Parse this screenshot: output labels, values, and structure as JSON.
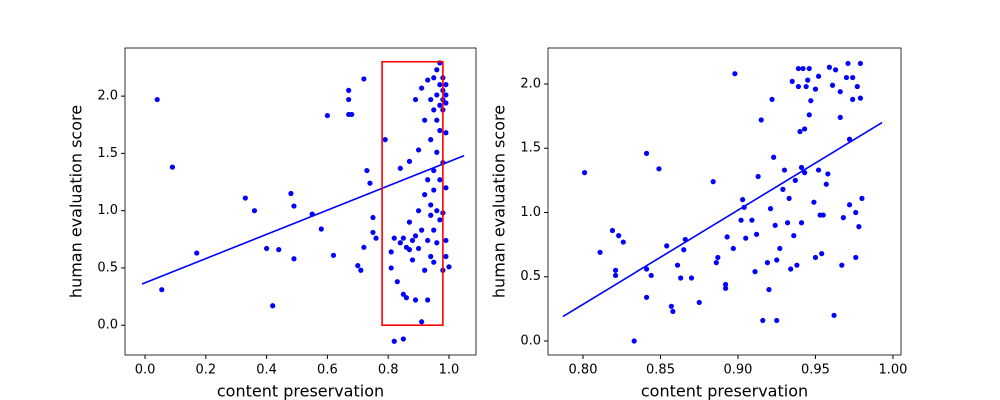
{
  "chart_data": [
    {
      "type": "scatter",
      "xlabel": "content preservation",
      "ylabel": "human evaluation score",
      "color": "#0000ff",
      "xlim": [
        -0.066,
        1.089
      ],
      "ylim": [
        -0.26,
        2.42
      ],
      "xticks": [
        {
          "value": 0.0,
          "label": "0.0"
        },
        0.2,
        0.4,
        0.6,
        0.8,
        {
          "value": 1.0,
          "label": "1.0"
        }
      ],
      "yticks": [
        {
          "value": 0.0,
          "label": "0.0"
        },
        0.5,
        {
          "value": 1.0,
          "label": "1.0"
        },
        1.5,
        {
          "value": 2.0,
          "label": "2.0"
        }
      ],
      "x": [
        0.04,
        0.055,
        0.09,
        0.17,
        0.33,
        0.36,
        0.4,
        0.42,
        0.44,
        0.48,
        0.49,
        0.49,
        0.55,
        0.58,
        0.6,
        0.62,
        0.67,
        0.67,
        0.67,
        0.68,
        0.7,
        0.71,
        0.72,
        0.72,
        0.73,
        0.74,
        0.75,
        0.75,
        0.76,
        0.79,
        0.81,
        0.81,
        0.82,
        0.82,
        0.83,
        0.84,
        0.84,
        0.85,
        0.85,
        0.85,
        0.86,
        0.86,
        0.87,
        0.87,
        0.87,
        0.88,
        0.88,
        0.89,
        0.89,
        0.89,
        0.9,
        0.9,
        0.9,
        0.91,
        0.91,
        0.91,
        0.92,
        0.92,
        0.92,
        0.93,
        0.93,
        0.93,
        0.93,
        0.94,
        0.94,
        0.94,
        0.94,
        0.94,
        0.95,
        0.95,
        0.95,
        0.95,
        0.95,
        0.95,
        0.96,
        0.96,
        0.96,
        0.96,
        0.96,
        0.96,
        0.97,
        0.97,
        0.97,
        0.97,
        0.97,
        0.97,
        0.98,
        0.98,
        0.98,
        0.98,
        0.98,
        0.98,
        0.98,
        0.99,
        0.99,
        0.99,
        0.99,
        0.99,
        1.0,
        0.99,
        0.99
      ],
      "y": [
        1.97,
        0.31,
        1.38,
        0.63,
        1.11,
        1.0,
        0.67,
        0.17,
        0.66,
        1.15,
        0.58,
        1.04,
        0.97,
        0.84,
        1.83,
        0.61,
        1.84,
        2.05,
        1.97,
        1.84,
        0.52,
        0.48,
        2.15,
        0.68,
        1.35,
        1.24,
        0.94,
        0.81,
        0.76,
        1.62,
        0.5,
        0.64,
        0.76,
        -0.14,
        0.38,
        1.37,
        0.72,
        0.76,
        -0.12,
        0.27,
        0.68,
        0.24,
        1.43,
        0.9,
        0.66,
        0.74,
        0.57,
        0.22,
        1.97,
        0.78,
        1.0,
        0.67,
        1.53,
        0.03,
        0.83,
        2.07,
        1.14,
        0.48,
        1.79,
        2.14,
        1.27,
        0.74,
        0.22,
        1.05,
        1.97,
        1.62,
        0.6,
        0.96,
        1.88,
        1.35,
        2.16,
        0.83,
        0.55,
        1.18,
        2.01,
        1.51,
        1.79,
        2.23,
        1.0,
        0.72,
        1.92,
        1.27,
        2.1,
        1.7,
        2.29,
        0.92,
        0.48,
        1.97,
        1.42,
        2.05,
        2.16,
        1.88,
        0.98,
        2.01,
        0.6,
        2.1,
        1.68,
        1.94,
        0.51,
        1.2,
        0.74
      ],
      "trendline": {
        "x": [
          -0.01,
          1.05
        ],
        "y": [
          0.36,
          1.48
        ],
        "color": "#0000ff"
      },
      "highlight_box": {
        "x": [
          0.78,
          0.98
        ],
        "y": [
          0.0,
          2.3
        ],
        "color": "#ff0000"
      }
    },
    {
      "type": "scatter",
      "xlabel": "content preservation",
      "ylabel": "human evaluation score",
      "color": "#0000ff",
      "xlim": [
        0.7774,
        1.0052
      ],
      "ylim": [
        -0.109,
        2.28
      ],
      "xticks": [
        {
          "value": 0.8,
          "label": "0.80"
        },
        0.85,
        {
          "value": 0.9,
          "label": "0.90"
        },
        0.95,
        {
          "value": 1.0,
          "label": "1.00"
        }
      ],
      "yticks": [
        {
          "value": 0.0,
          "label": "0.0"
        },
        0.5,
        {
          "value": 1.0,
          "label": "1.0"
        },
        1.5,
        {
          "value": 2.0,
          "label": "2.0"
        }
      ],
      "x": [
        0.801,
        0.811,
        0.819,
        0.821,
        0.821,
        0.823,
        0.826,
        0.833,
        0.841,
        0.841,
        0.841,
        0.844,
        0.849,
        0.854,
        0.857,
        0.858,
        0.861,
        0.863,
        0.865,
        0.866,
        0.87,
        0.875,
        0.884,
        0.886,
        0.887,
        0.892,
        0.892,
        0.893,
        0.897,
        0.898,
        0.902,
        0.903,
        0.904,
        0.905,
        0.909,
        0.911,
        0.912,
        0.913,
        0.915,
        0.916,
        0.919,
        0.92,
        0.921,
        0.922,
        0.923,
        0.924,
        0.925,
        0.925,
        0.927,
        0.929,
        0.93,
        0.932,
        0.933,
        0.934,
        0.935,
        0.936,
        0.937,
        0.938,
        0.939,
        0.939,
        0.94,
        0.941,
        0.941,
        0.942,
        0.943,
        0.943,
        0.944,
        0.945,
        0.946,
        0.946,
        0.947,
        0.949,
        0.95,
        0.95,
        0.952,
        0.952,
        0.953,
        0.954,
        0.955,
        0.957,
        0.958,
        0.959,
        0.961,
        0.962,
        0.963,
        0.966,
        0.966,
        0.967,
        0.968,
        0.97,
        0.971,
        0.972,
        0.972,
        0.974,
        0.974,
        0.976,
        0.976,
        0.977,
        0.978,
        0.979,
        0.979,
        0.98
      ],
      "y": [
        1.31,
        0.69,
        0.86,
        0.55,
        0.51,
        0.82,
        0.77,
        0.0,
        1.46,
        0.56,
        0.34,
        0.51,
        1.34,
        0.74,
        0.27,
        0.23,
        0.59,
        0.49,
        0.71,
        0.79,
        0.49,
        0.3,
        1.24,
        0.61,
        0.65,
        0.44,
        0.41,
        0.81,
        0.72,
        2.08,
        0.94,
        1.1,
        1.04,
        0.8,
        0.94,
        0.54,
        0.83,
        1.28,
        1.72,
        0.16,
        0.61,
        0.4,
        1.03,
        1.88,
        1.43,
        0.9,
        0.63,
        0.16,
        0.72,
        1.18,
        1.33,
        0.92,
        1.11,
        0.56,
        2.02,
        0.82,
        1.25,
        0.59,
        1.98,
        2.12,
        1.63,
        0.92,
        1.35,
        2.12,
        1.65,
        1.31,
        1.98,
        2.03,
        2.12,
        1.76,
        1.87,
        1.08,
        0.65,
        1.96,
        2.06,
        1.33,
        0.98,
        0.68,
        0.98,
        1.22,
        1.3,
        2.13,
        1.99,
        0.2,
        2.11,
        1.94,
        1.74,
        0.59,
        0.96,
        2.05,
        2.16,
        1.57,
        1.06,
        1.88,
        2.05,
        0.65,
        1.0,
        1.98,
        0.89,
        2.16,
        1.89,
        1.11
      ],
      "trendline": {
        "x": [
          0.787,
          0.993
        ],
        "y": [
          0.19,
          1.7
        ],
        "color": "#0000ff"
      }
    }
  ]
}
